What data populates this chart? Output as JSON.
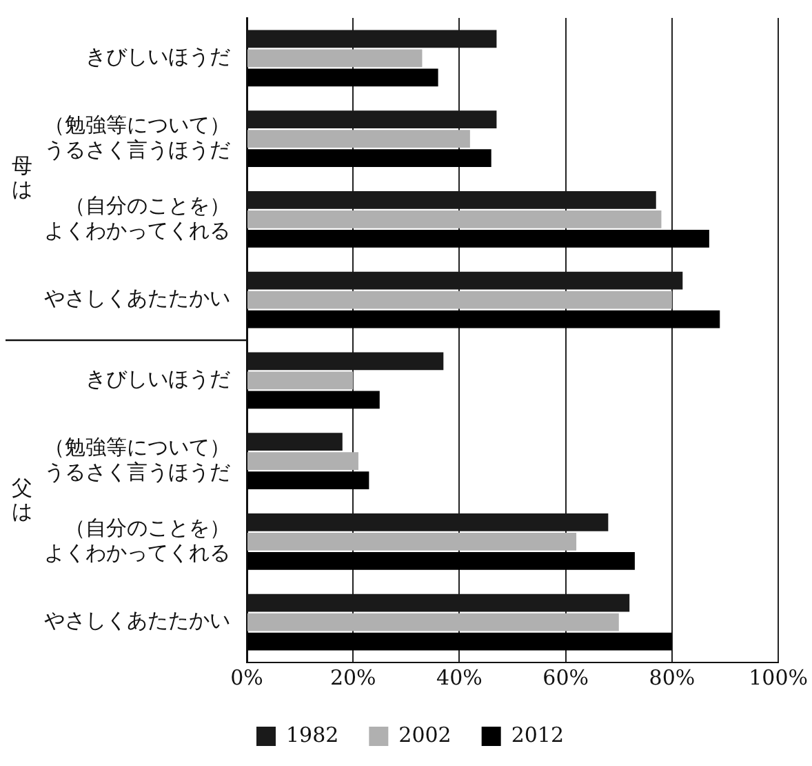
{
  "chart_data": {
    "type": "bar",
    "orientation": "horizontal",
    "categories": [
      "きびしいほうだ",
      "（勉強等について）うるさく言うほうだ",
      "（自分のことを）よくわかってくれる",
      "やさしくあたたかい",
      "きびしいほうだ",
      "（勉強等について）うるさく言うほうだ",
      "（自分のことを）よくわかってくれる",
      "やさしくあたたかい"
    ],
    "series": [
      {
        "name": "1982",
        "color": "#1a1a1a",
        "values": [
          47,
          47,
          77,
          82,
          37,
          18,
          68,
          72
        ]
      },
      {
        "name": "2002",
        "color": "#b0b0b0",
        "values": [
          33,
          42,
          78,
          80,
          20,
          21,
          62,
          70
        ]
      },
      {
        "name": "2012",
        "color": "#000000",
        "values": [
          36,
          46,
          87,
          89,
          25,
          23,
          73,
          80
        ]
      }
    ],
    "xlim": [
      0,
      100
    ],
    "xticks": [
      {
        "value": 0,
        "label": "0%"
      },
      {
        "value": 20,
        "label": "20%"
      },
      {
        "value": 40,
        "label": "40%"
      },
      {
        "value": 60,
        "label": "60%"
      },
      {
        "value": 80,
        "label": "80%"
      },
      {
        "value": 100,
        "label": "100%"
      }
    ],
    "annotations": [
      "母は",
      "父は"
    ],
    "grid": "x",
    "legend": "bottom"
  }
}
